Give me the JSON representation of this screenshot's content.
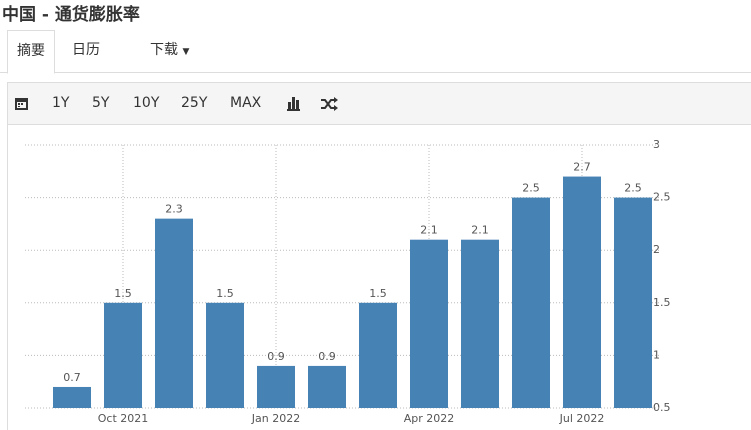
{
  "header": {
    "title": "中国 - 通货膨胀率"
  },
  "tabs": [
    "摘要",
    "日历",
    "下载"
  ],
  "toolbar": [
    "1Y",
    "5Y",
    "10Y",
    "25Y",
    "MAX"
  ],
  "chart_data": {
    "type": "bar",
    "categories": [
      null,
      "Oct 2021",
      null,
      null,
      "Jan 2022",
      null,
      null,
      "Apr 2022",
      null,
      null,
      "Jul 2022",
      null
    ],
    "values": [
      0.7,
      1.5,
      2.3,
      1.5,
      0.9,
      0.9,
      1.5,
      2.1,
      2.1,
      2.5,
      2.7,
      2.5
    ],
    "color": "#4682b4",
    "ylim": [
      0.5,
      3
    ],
    "yticks": [
      0.5,
      1,
      1.5,
      2,
      2.5,
      3
    ],
    "grid": true
  }
}
